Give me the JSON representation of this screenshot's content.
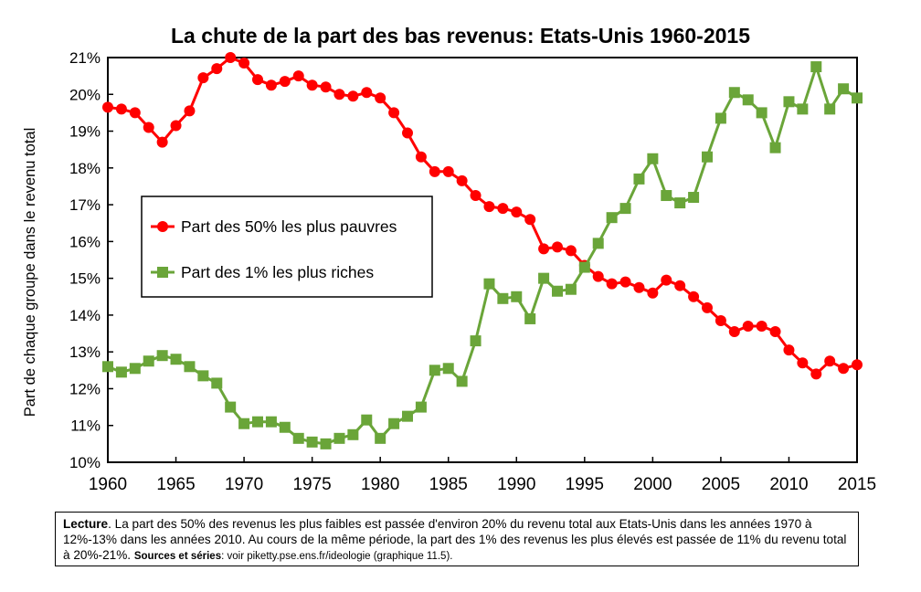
{
  "chart_data": {
    "type": "line",
    "title": "La chute de la part des bas revenus: Etats-Unis 1960-2015",
    "ylabel": "Part de chaque groupe dans le revenu total",
    "xlabel": "",
    "xlim": [
      1960,
      2015
    ],
    "ylim": [
      0.1,
      0.21
    ],
    "x_ticks": [
      "1960",
      "1965",
      "1970",
      "1975",
      "1980",
      "1985",
      "1990",
      "1995",
      "2000",
      "2005",
      "2010",
      "2015"
    ],
    "y_ticks": [
      "10%",
      "11%",
      "12%",
      "13%",
      "14%",
      "15%",
      "16%",
      "17%",
      "18%",
      "19%",
      "20%",
      "21%"
    ],
    "grid": false,
    "legend_position": "center-left",
    "x": [
      1960,
      1961,
      1962,
      1963,
      1964,
      1965,
      1966,
      1967,
      1968,
      1969,
      1970,
      1971,
      1972,
      1973,
      1974,
      1975,
      1976,
      1977,
      1978,
      1979,
      1980,
      1981,
      1982,
      1983,
      1984,
      1985,
      1986,
      1987,
      1988,
      1989,
      1990,
      1991,
      1992,
      1993,
      1994,
      1995,
      1996,
      1997,
      1998,
      1999,
      2000,
      2001,
      2002,
      2003,
      2004,
      2005,
      2006,
      2007,
      2008,
      2009,
      2010,
      2011,
      2012,
      2013,
      2014,
      2015
    ],
    "series": [
      {
        "name": "Part des 50% les plus pauvres",
        "color": "#ff0000",
        "marker": "circle",
        "values": [
          0.1965,
          0.196,
          0.195,
          0.191,
          0.187,
          0.1915,
          0.1955,
          0.2045,
          0.207,
          0.21,
          0.2085,
          0.204,
          0.2025,
          0.2035,
          0.205,
          0.2025,
          0.202,
          0.2,
          0.1995,
          0.2005,
          0.199,
          0.195,
          0.1895,
          0.183,
          0.179,
          0.179,
          0.1765,
          0.1725,
          0.1695,
          0.169,
          0.168,
          0.166,
          0.158,
          0.1585,
          0.1575,
          0.1535,
          0.1505,
          0.1485,
          0.149,
          0.1475,
          0.146,
          0.1495,
          0.148,
          0.145,
          0.142,
          0.1385,
          0.1355,
          0.137,
          0.137,
          0.1355,
          0.1305,
          0.127,
          0.124,
          0.1275,
          0.1255,
          0.1265
        ]
      },
      {
        "name": "Part des 1% les plus riches",
        "color": "#6aa539",
        "marker": "square",
        "values": [
          0.126,
          0.1245,
          0.1255,
          0.1275,
          0.129,
          0.128,
          0.126,
          0.1235,
          0.1215,
          0.115,
          0.1105,
          0.111,
          0.111,
          0.1095,
          0.1065,
          0.1055,
          0.105,
          0.1065,
          0.1075,
          0.1115,
          0.1065,
          0.1105,
          0.1125,
          0.115,
          0.125,
          0.1255,
          0.122,
          0.133,
          0.1485,
          0.1445,
          0.145,
          0.139,
          0.15,
          0.1465,
          0.147,
          0.153,
          0.1595,
          0.1665,
          0.169,
          0.177,
          0.1825,
          0.1725,
          0.1705,
          0.172,
          0.183,
          0.1935,
          0.2005,
          0.1985,
          0.195,
          0.1855,
          0.198,
          0.196,
          0.2075,
          0.196,
          0.2015,
          0.199
        ]
      }
    ]
  },
  "caption": {
    "lecture_label": "Lecture",
    "text": ". La part des 50% des revenus les plus faibles est passée d'environ 20% du revenu total aux Etats-Unis dans les années 1970 à 12%-13% dans les années 2010. Au cours de la même période, la part des 1% des revenus les plus élevés est passée de 11% du revenu total à 20%-21%.",
    "sources_label": "Sources et séries",
    "sources_text": ": voir piketty.pse.ens.fr/ideologie (graphique 11.5)."
  }
}
